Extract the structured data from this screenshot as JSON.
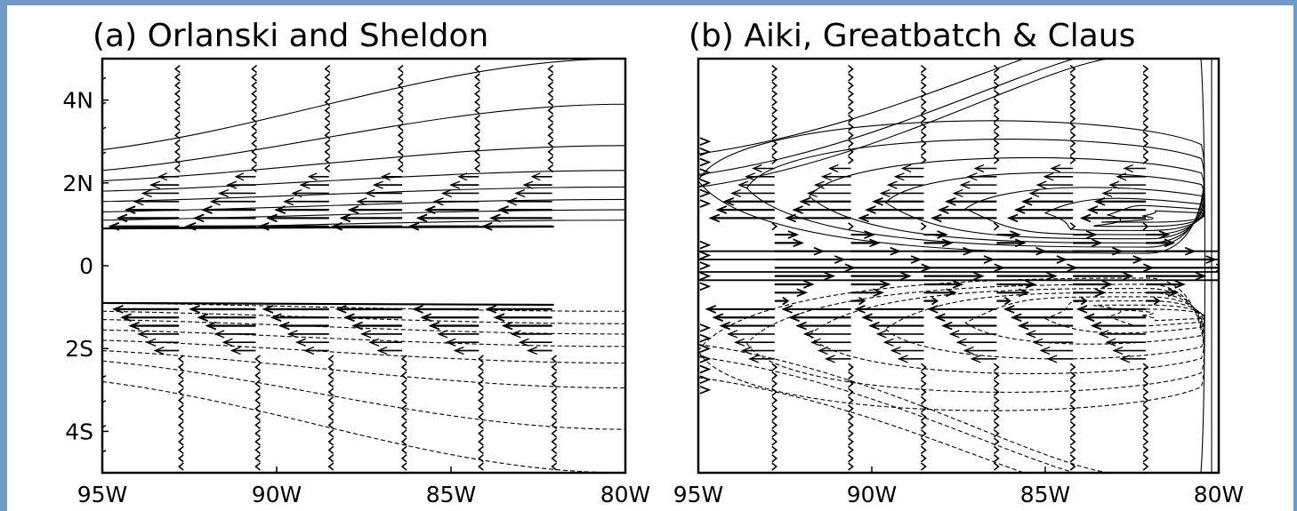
{
  "chart_data": [
    {
      "type": "vector-field-contour",
      "title": "(a) Orlanski and Sheldon",
      "x_ticks": [
        "95W",
        "90W",
        "85W",
        "80W"
      ],
      "x_tick_values": [
        -95,
        -90,
        -85,
        -80
      ],
      "y_ticks": [
        "4N",
        "2N",
        "0",
        "2S",
        "4S"
      ],
      "y_tick_values": [
        4,
        2,
        0,
        -2,
        -4
      ],
      "xlim": [
        -95,
        -80
      ],
      "ylim": [
        -5,
        5
      ],
      "vector_columns_lon": [
        -92.8,
        -90.6,
        -88.5,
        -86.4,
        -84.2,
        -82.1
      ],
      "contours": {
        "north": [
          {
            "lat_west": 0.9,
            "lat_east": 1.1
          },
          {
            "lat_west": 1.1,
            "lat_east": 1.35
          },
          {
            "lat_west": 1.3,
            "lat_east": 1.6
          },
          {
            "lat_west": 1.55,
            "lat_east": 1.9
          },
          {
            "lat_west": 1.8,
            "lat_east": 2.3
          },
          {
            "lat_west": 2.05,
            "lat_east": 2.9
          },
          {
            "lat_west": 2.3,
            "lat_east": 3.9
          },
          {
            "lat_west": 2.8,
            "lat_east": 5.0
          }
        ],
        "south_dashed": [
          {
            "lat_west": -0.9,
            "lat_east": -1.1
          },
          {
            "lat_west": -1.1,
            "lat_east": -1.4
          },
          {
            "lat_west": -1.3,
            "lat_east": -1.65
          },
          {
            "lat_west": -1.55,
            "lat_east": -1.95
          },
          {
            "lat_west": -1.8,
            "lat_east": -2.35
          },
          {
            "lat_west": -2.05,
            "lat_east": -2.95
          },
          {
            "lat_west": -2.3,
            "lat_east": -3.95
          },
          {
            "lat_west": -2.8,
            "lat_east": -5.0
          }
        ]
      }
    },
    {
      "type": "vector-field-contour",
      "title": "(b) Aiki, Greatbatch & Claus",
      "x_ticks": [
        "95W",
        "90W",
        "85W",
        "80W"
      ],
      "x_tick_values": [
        -95,
        -90,
        -85,
        -80
      ],
      "xlim": [
        -95,
        -80
      ],
      "ylim": [
        -5,
        5
      ],
      "vector_columns_lon": [
        -92.8,
        -90.6,
        -88.5,
        -86.4,
        -84.2,
        -82.1
      ],
      "edge_vector_column_lon": -94.9,
      "closed_contour_centers": [
        {
          "lon": -81.5,
          "lat": 1.2
        },
        {
          "lon": -81.5,
          "lat": -1.2
        }
      ]
    }
  ]
}
